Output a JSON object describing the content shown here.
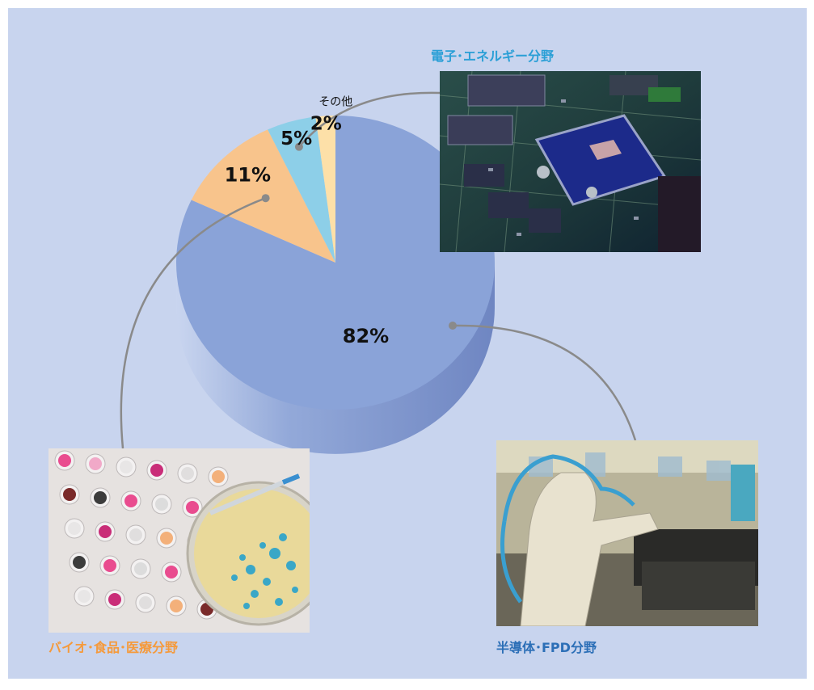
{
  "chart_data": {
    "type": "pie",
    "slices": [
      {
        "label": "半導体･FPD分野",
        "value": 82,
        "value_label": "82%",
        "color": "#8aa3d8"
      },
      {
        "label": "バイオ･食品･医療分野",
        "value": 11,
        "value_label": "11%",
        "color": "#f8c48c"
      },
      {
        "label": "電子･エネルギー分野",
        "value": 5,
        "value_label": "5%",
        "color": "#8dcfe8"
      },
      {
        "label": "その他",
        "value": 2,
        "value_label": "2%",
        "color": "#fde0a8"
      }
    ]
  },
  "labels": {
    "electronics": {
      "text": "電子･エネルギー分野",
      "color": "#2a9fd6"
    },
    "bio": {
      "text": "バイオ･食品･医療分野",
      "color": "#f59a3c"
    },
    "semiconductor": {
      "text": "半導体･FPD分野",
      "color": "#2c6fb7"
    },
    "other": {
      "text": "その他"
    }
  },
  "photos": {
    "electronics": "circuit-board-photo",
    "bio": "petri-dish-photo",
    "semiconductor": "robot-arm-factory-photo"
  }
}
